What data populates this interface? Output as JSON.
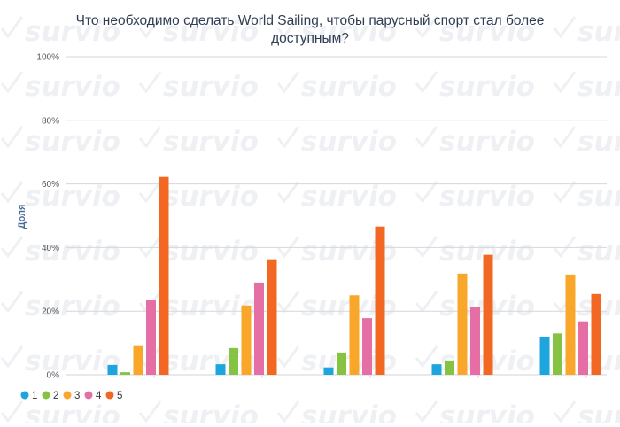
{
  "title": "Что необходимо сделать World Sailing, чтобы парусный спорт стал более доступным?",
  "watermark_text": "survio",
  "chart_data": {
    "type": "bar",
    "title": "Что необходимо сделать World Sailing, чтобы парусный спорт стал более доступным?",
    "xlabel": "",
    "ylabel": "Доля",
    "ylim": [
      0,
      100
    ],
    "yticks": [
      0,
      20,
      40,
      60,
      80,
      100
    ],
    "ytick_suffix": "%",
    "categories": [
      "",
      "",
      "",
      "",
      ""
    ],
    "grid": true,
    "legend_position": "bottom-left",
    "series": [
      {
        "name": "1",
        "color": "#1ea5dd",
        "values": [
          3.1,
          3.3,
          2.3,
          3.3,
          12.0
        ]
      },
      {
        "name": "2",
        "color": "#86c342",
        "values": [
          0.8,
          8.4,
          7.0,
          4.5,
          13.0
        ]
      },
      {
        "name": "3",
        "color": "#f9a72b",
        "values": [
          9.0,
          21.8,
          25.0,
          31.8,
          31.5
        ]
      },
      {
        "name": "4",
        "color": "#e56fa5",
        "values": [
          23.4,
          29.0,
          17.8,
          21.3,
          16.8
        ]
      },
      {
        "name": "5",
        "color": "#f26722",
        "values": [
          62.2,
          36.3,
          46.6,
          37.7,
          25.4
        ]
      }
    ]
  }
}
